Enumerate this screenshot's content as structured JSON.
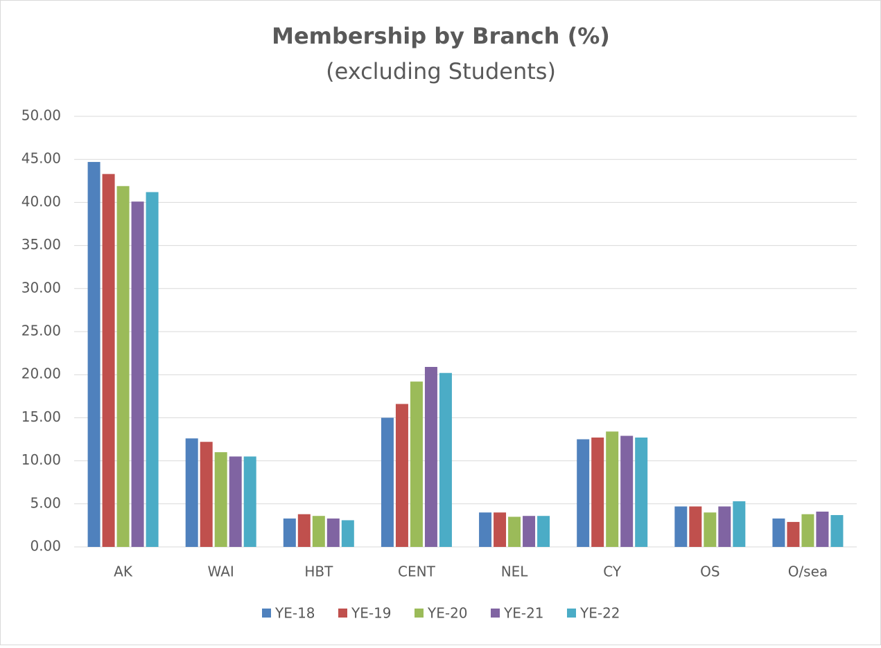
{
  "chart_data": {
    "type": "bar",
    "title": "Membership by Branch (%)",
    "subtitle": "(excluding Students)",
    "categories": [
      "AK",
      "WAI",
      "HBT",
      "CENT",
      "NEL",
      "CY",
      "OS",
      "O/sea"
    ],
    "series": [
      {
        "name": "YE-18",
        "color": "#4f81bd",
        "values": [
          44.7,
          12.6,
          3.3,
          15.0,
          4.0,
          12.5,
          4.7,
          3.3
        ]
      },
      {
        "name": "YE-19",
        "color": "#c0504d",
        "values": [
          43.3,
          12.2,
          3.8,
          16.6,
          4.0,
          12.7,
          4.7,
          2.9
        ]
      },
      {
        "name": "YE-20",
        "color": "#9bbb59",
        "values": [
          41.9,
          11.0,
          3.6,
          19.2,
          3.5,
          13.4,
          4.0,
          3.8
        ]
      },
      {
        "name": "YE-21",
        "color": "#8064a2",
        "values": [
          40.1,
          10.5,
          3.3,
          20.9,
          3.6,
          12.9,
          4.7,
          4.1
        ]
      },
      {
        "name": "YE-22",
        "color": "#4bacc6",
        "values": [
          41.2,
          10.5,
          3.1,
          20.2,
          3.6,
          12.7,
          5.3,
          3.7
        ]
      }
    ],
    "ylim": [
      0,
      50
    ],
    "yticks": [
      {
        "value": 0,
        "label": "0.00"
      },
      {
        "value": 5,
        "label": "5.00"
      },
      {
        "value": 10,
        "label": "10.00"
      },
      {
        "value": 15,
        "label": "15.00"
      },
      {
        "value": 20,
        "label": "20.00"
      },
      {
        "value": 25,
        "label": "25.00"
      },
      {
        "value": 30,
        "label": "30.00"
      },
      {
        "value": 35,
        "label": "35.00"
      },
      {
        "value": 40,
        "label": "40.00"
      },
      {
        "value": 45,
        "label": "45.00"
      },
      {
        "value": 50,
        "label": "50.00"
      }
    ],
    "grid": true,
    "legend": "bottom"
  }
}
